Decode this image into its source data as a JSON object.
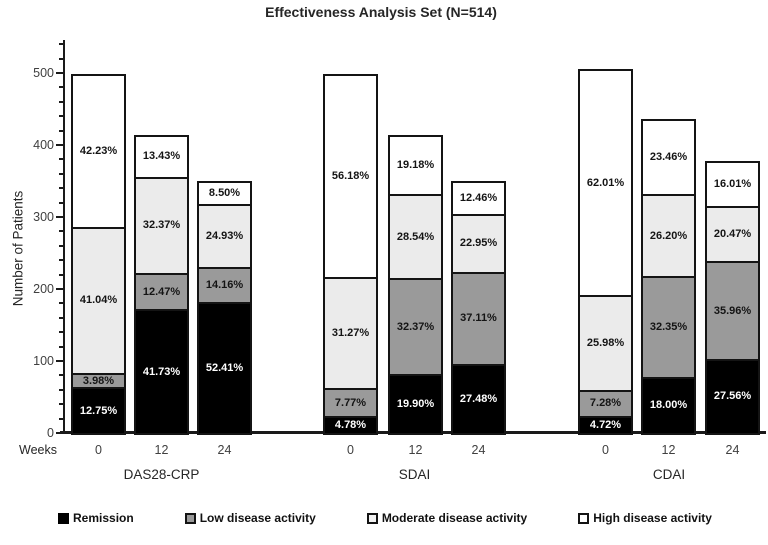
{
  "chart_data": {
    "type": "bar",
    "stacked": true,
    "title": "Effectiveness Analysis Set (N=514)",
    "ylabel": "Number of Patients",
    "x_axis_label": "Weeks",
    "ylim": [
      0,
      545
    ],
    "y_major_ticks": [
      0,
      100,
      200,
      300,
      400,
      500
    ],
    "y_minor_tick_step": 20,
    "y_minor_tick_max": 540,
    "grid": false,
    "legend_position": "bottom",
    "segment_styles": [
      {
        "key": "remission",
        "fill": "#000000",
        "text": "#ffffff",
        "legend_fill": "#000000",
        "legend_border": "#000000"
      },
      {
        "key": "low",
        "fill": "#9a9a9a",
        "text": "#141414",
        "legend_fill": "#9a9a9a",
        "legend_border": "#141414"
      },
      {
        "key": "moderate",
        "fill": "#ebebeb",
        "text": "#141414",
        "legend_fill": "#f2f2f2",
        "legend_border": "#141414"
      },
      {
        "key": "high",
        "fill": "#ffffff",
        "text": "#141414",
        "legend_fill": "#ffffff",
        "legend_border": "#141414"
      }
    ],
    "legend": [
      {
        "key": "remission",
        "label": "Remission"
      },
      {
        "key": "low",
        "label": "Low disease activity"
      },
      {
        "key": "moderate",
        "label": "Moderate disease activity"
      },
      {
        "key": "high",
        "label": "High disease activity"
      }
    ],
    "groups": [
      {
        "label": "DAS28-CRP",
        "bars": [
          {
            "week": "0",
            "total_patients": 502,
            "segments": [
              {
                "key": "remission",
                "patients": 64,
                "pct": 12.75,
                "label": "12.75%"
              },
              {
                "key": "low",
                "patients": 20,
                "pct": 3.98,
                "label": "3.98%"
              },
              {
                "key": "moderate",
                "patients": 206,
                "pct": 41.04,
                "label": "41.04%"
              },
              {
                "key": "high",
                "patients": 212,
                "pct": 42.23,
                "label": "42.23%"
              }
            ]
          },
          {
            "week": "12",
            "total_patients": 417,
            "segments": [
              {
                "key": "remission",
                "patients": 174,
                "pct": 41.73,
                "label": "41.73%"
              },
              {
                "key": "low",
                "patients": 52,
                "pct": 12.47,
                "label": "12.47%"
              },
              {
                "key": "moderate",
                "patients": 135,
                "pct": 32.37,
                "label": "32.37%"
              },
              {
                "key": "high",
                "patients": 56,
                "pct": 13.43,
                "label": "13.43%"
              }
            ]
          },
          {
            "week": "24",
            "total_patients": 353,
            "segments": [
              {
                "key": "remission",
                "patients": 185,
                "pct": 52.41,
                "label": "52.41%"
              },
              {
                "key": "low",
                "patients": 50,
                "pct": 14.16,
                "label": "14.16%"
              },
              {
                "key": "moderate",
                "patients": 88,
                "pct": 24.93,
                "label": "24.93%"
              },
              {
                "key": "high",
                "patients": 30,
                "pct": 8.5,
                "label": "8.50%"
              }
            ]
          }
        ]
      },
      {
        "label": "SDAI",
        "bars": [
          {
            "week": "0",
            "total_patients": 502,
            "segments": [
              {
                "key": "remission",
                "patients": 24,
                "pct": 4.78,
                "label": "4.78%"
              },
              {
                "key": "low",
                "patients": 39,
                "pct": 7.77,
                "label": "7.77%"
              },
              {
                "key": "moderate",
                "patients": 157,
                "pct": 31.27,
                "label": "31.27%"
              },
              {
                "key": "high",
                "patients": 282,
                "pct": 56.18,
                "label": "56.18%"
              }
            ]
          },
          {
            "week": "12",
            "total_patients": 417,
            "segments": [
              {
                "key": "remission",
                "patients": 83,
                "pct": 19.9,
                "label": "19.90%"
              },
              {
                "key": "low",
                "patients": 135,
                "pct": 32.37,
                "label": "32.37%"
              },
              {
                "key": "moderate",
                "patients": 119,
                "pct": 28.54,
                "label": "28.54%"
              },
              {
                "key": "high",
                "patients": 80,
                "pct": 19.18,
                "label": "19.18%"
              }
            ]
          },
          {
            "week": "24",
            "total_patients": 353,
            "segments": [
              {
                "key": "remission",
                "patients": 97,
                "pct": 27.48,
                "label": "27.48%"
              },
              {
                "key": "low",
                "patients": 131,
                "pct": 37.11,
                "label": "37.11%"
              },
              {
                "key": "moderate",
                "patients": 81,
                "pct": 22.95,
                "label": "22.95%"
              },
              {
                "key": "high",
                "patients": 44,
                "pct": 12.46,
                "label": "12.46%"
              }
            ]
          }
        ]
      },
      {
        "label": "CDAI",
        "bars": [
          {
            "week": "0",
            "total_patients": 508,
            "segments": [
              {
                "key": "remission",
                "patients": 24,
                "pct": 4.72,
                "label": "4.72%"
              },
              {
                "key": "low",
                "patients": 37,
                "pct": 7.28,
                "label": "7.28%"
              },
              {
                "key": "moderate",
                "patients": 132,
                "pct": 25.98,
                "label": "25.98%"
              },
              {
                "key": "high",
                "patients": 315,
                "pct": 62.01,
                "label": "62.01%"
              }
            ]
          },
          {
            "week": "12",
            "total_patients": 439,
            "segments": [
              {
                "key": "remission",
                "patients": 79,
                "pct": 18.0,
                "label": "18.00%"
              },
              {
                "key": "low",
                "patients": 142,
                "pct": 32.35,
                "label": "32.35%"
              },
              {
                "key": "moderate",
                "patients": 115,
                "pct": 26.2,
                "label": "26.20%"
              },
              {
                "key": "high",
                "patients": 103,
                "pct": 23.46,
                "label": "23.46%"
              }
            ]
          },
          {
            "week": "24",
            "total_patients": 381,
            "segments": [
              {
                "key": "remission",
                "patients": 105,
                "pct": 27.56,
                "label": "27.56%"
              },
              {
                "key": "low",
                "patients": 137,
                "pct": 35.96,
                "label": "35.96%"
              },
              {
                "key": "moderate",
                "patients": 78,
                "pct": 20.47,
                "label": "20.47%"
              },
              {
                "key": "high",
                "patients": 61,
                "pct": 16.01,
                "label": "16.01%"
              }
            ]
          }
        ]
      }
    ]
  }
}
